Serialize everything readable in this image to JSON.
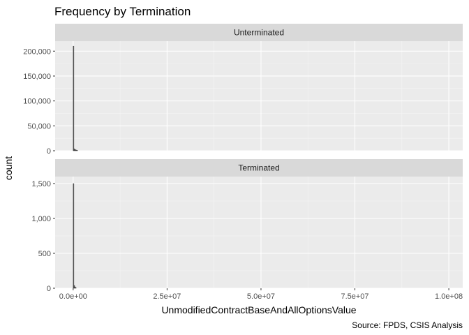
{
  "chart_data": {
    "type": "histogram",
    "title": "Frequency by Termination",
    "xlabel": "UnmodifiedContractBaseAndAllOptionsValue",
    "ylabel": "count",
    "caption": "Source: FPDS, CSIS Analysis",
    "x_ticks": [
      "0.0e+00",
      "2.5e+07",
      "5.0e+07",
      "7.5e+07",
      "1.0e+08"
    ],
    "x_tick_values": [
      0,
      25000000,
      50000000,
      75000000,
      100000000
    ],
    "xlim": [
      -4800000,
      103700000
    ],
    "grid": true,
    "facets": [
      {
        "strip": "Unterminated",
        "ylim": [
          0,
          220000
        ],
        "y_ticks": [
          "0",
          "50,000",
          "100,000",
          "150,000",
          "200,000"
        ],
        "y_tick_values": [
          0,
          50000,
          100000,
          150000,
          200000
        ],
        "bins": [
          {
            "x0": 0,
            "x1": 200000,
            "count": 210000
          },
          {
            "x0": 200000,
            "x1": 400000,
            "count": 4000
          },
          {
            "x0": 400000,
            "x1": 600000,
            "count": 2500
          },
          {
            "x0": 600000,
            "x1": 800000,
            "count": 1800
          },
          {
            "x0": 800000,
            "x1": 1000000,
            "count": 1200
          },
          {
            "x0": 1000000,
            "x1": 1200000,
            "count": 800
          }
        ]
      },
      {
        "strip": "Terminated",
        "ylim": [
          0,
          1600
        ],
        "y_ticks": [
          "0",
          "500",
          "1,000",
          "1,500"
        ],
        "y_tick_values": [
          0,
          500,
          1000,
          1500
        ],
        "bins": [
          {
            "x0": 0,
            "x1": 200000,
            "count": 1500
          },
          {
            "x0": 200000,
            "x1": 400000,
            "count": 40
          },
          {
            "x0": 400000,
            "x1": 600000,
            "count": 20
          },
          {
            "x0": 600000,
            "x1": 800000,
            "count": 10
          }
        ]
      }
    ]
  }
}
